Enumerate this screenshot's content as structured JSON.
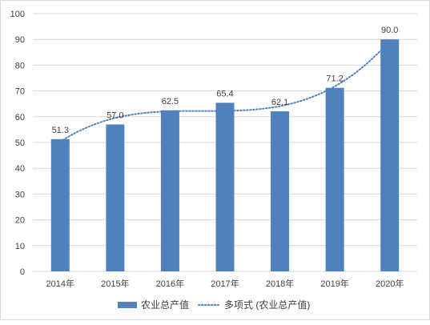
{
  "chart_data": {
    "type": "bar",
    "title": "",
    "xlabel": "",
    "ylabel": "",
    "categories": [
      "2014年",
      "2015年",
      "2016年",
      "2017年",
      "2018年",
      "2019年",
      "2020年"
    ],
    "series": [
      {
        "name": "农业总产值",
        "values": [
          51.3,
          57.0,
          62.5,
          65.4,
          62.1,
          71.2,
          90.0
        ],
        "color": "#4f81bd"
      }
    ],
    "data_labels": [
      "51.3",
      "57.0",
      "62.5",
      "65.4",
      "62.1",
      "71.2",
      "90.0"
    ],
    "trendline": {
      "name": "多项式 (农业总产值)",
      "type": "polynomial",
      "color": "#4f81bd",
      "style": "dotted"
    },
    "ylim": [
      0,
      100
    ],
    "yticks": [
      0,
      10,
      20,
      30,
      40,
      50,
      60,
      70,
      80,
      90,
      100
    ],
    "ytick_labels": [
      "0",
      "10",
      "20",
      "30",
      "40",
      "50",
      "60",
      "70",
      "80",
      "90",
      "100"
    ],
    "grid": true,
    "legend": "bottom",
    "colors": {
      "bar": "#4f81bd",
      "grid": "#d9d9d9",
      "text": "#404040"
    }
  }
}
